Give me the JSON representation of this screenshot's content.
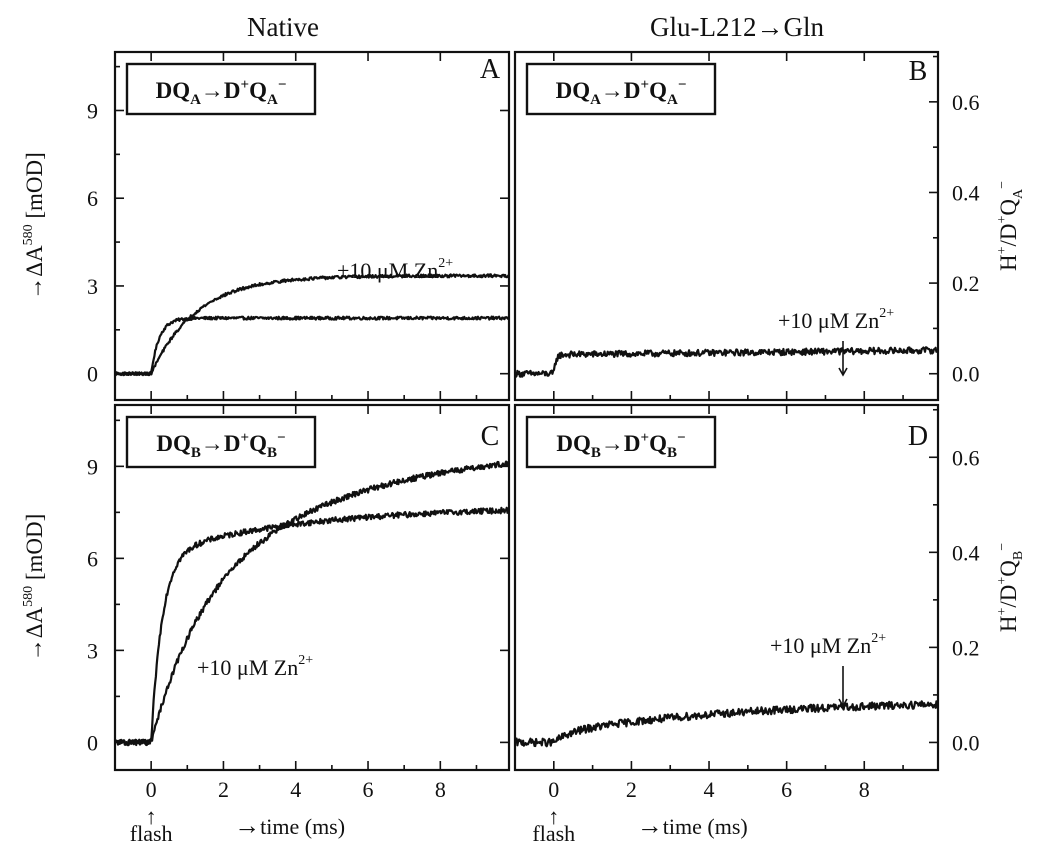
{
  "column_titles": {
    "left": "Native",
    "right": "Glu-L212→Gln"
  },
  "chart_data": [
    {
      "type": "line",
      "panel": "A",
      "column": "Native",
      "reaction": {
        "pre": "DQ",
        "presub": "A",
        "post": "D",
        "postsup": "+",
        "postq": "Q",
        "postsub": "A",
        "postsup2": "−"
      },
      "ylabel": {
        "text": "ΔA",
        "sup": "580",
        "unit": " [mOD]",
        "arrow": "→"
      },
      "xlim": [
        -1,
        9.9
      ],
      "ylim": [
        -0.9,
        11
      ],
      "yticks": [
        0,
        3,
        6,
        9
      ],
      "xticks": [],
      "annotation": {
        "text": "+10 μM Zn",
        "sup": "2+"
      },
      "series": [
        {
          "role": "control",
          "kind": "exp",
          "amp": 1.9,
          "tau": 0.22,
          "noise": 0.05
        },
        {
          "role": "zinc",
          "kind": "exp",
          "amp": 3.35,
          "tau": 1.25,
          "noise": 0.05
        }
      ]
    },
    {
      "type": "line",
      "panel": "B",
      "column": "Glu-L212→Gln",
      "reaction": {
        "pre": "DQ",
        "presub": "A",
        "post": "D",
        "postsup": "+",
        "postq": "Q",
        "postsub": "A",
        "postsup2": "−"
      },
      "y2label": {
        "text": "H",
        "sup1": "+",
        "mid": "/D",
        "sup2": "+",
        "q": "Q",
        "sub": "A",
        "sup3": "−"
      },
      "xlim": [
        -1,
        9.9
      ],
      "ylim": [
        -0.058,
        0.71
      ],
      "y2ticks": [
        0.0,
        0.2,
        0.4,
        0.6
      ],
      "xticks": [],
      "annotation": {
        "text": "+10 μM Zn",
        "sup": "2+"
      },
      "series": [
        {
          "role": "control+zinc",
          "kind": "exp",
          "amp": 0.042,
          "tau": 0.05,
          "slope": 0.001,
          "noise": 0.007
        }
      ]
    },
    {
      "type": "line",
      "panel": "C",
      "column": "Native",
      "reaction": {
        "pre": "DQ",
        "presub": "B",
        "post": "D",
        "postsup": "+",
        "postq": "Q",
        "postsub": "B",
        "postsup2": "−"
      },
      "ylabel": {
        "text": "ΔA",
        "sup": "580",
        "unit": " [mOD]",
        "arrow": "→"
      },
      "xlim": [
        -1,
        9.9
      ],
      "ylim": [
        -0.9,
        11
      ],
      "yticks": [
        0,
        3,
        6,
        9
      ],
      "xticks": [
        0,
        2,
        4,
        6,
        8
      ],
      "xlabel": {
        "arrow": "→",
        "text": "time (ms)"
      },
      "flash": {
        "arrow": "↑",
        "text": "flash"
      },
      "annotation": {
        "text": "+10 μM Zn",
        "sup": "2+"
      },
      "series": [
        {
          "role": "control",
          "kind": "biexp",
          "a1": 6.1,
          "t1": 0.3,
          "a2": 1.6,
          "t2": 4.0,
          "noise": 0.09
        },
        {
          "role": "zinc",
          "kind": "biexp",
          "a1": 4.3,
          "t1": 1.3,
          "a2": 5.4,
          "t2": 4.5,
          "noise": 0.09
        }
      ]
    },
    {
      "type": "line",
      "panel": "D",
      "column": "Glu-L212→Gln",
      "reaction": {
        "pre": "DQ",
        "presub": "B",
        "post": "D",
        "postsup": "+",
        "postq": "Q",
        "postsub": "B",
        "postsup2": "−"
      },
      "y2label": {
        "text": "H",
        "sup1": "+",
        "mid": "/D",
        "sup2": "+",
        "q": "Q",
        "sub": "B",
        "sup3": "−"
      },
      "xlim": [
        -1,
        9.9
      ],
      "ylim": [
        -0.058,
        0.71
      ],
      "y2ticks": [
        0.0,
        0.2,
        0.4,
        0.6
      ],
      "xticks": [
        0,
        2,
        4,
        6,
        8
      ],
      "xlabel": {
        "arrow": "→",
        "text": "time (ms)"
      },
      "flash": {
        "arrow": "↑",
        "text": "flash"
      },
      "annotation": {
        "text": "+10 μM Zn",
        "sup": "2+"
      },
      "series": [
        {
          "role": "control+zinc",
          "kind": "biexp",
          "a1": 0.02,
          "t1": 0.4,
          "a2": 0.07,
          "t2": 5.0,
          "noise": 0.008
        }
      ]
    }
  ]
}
